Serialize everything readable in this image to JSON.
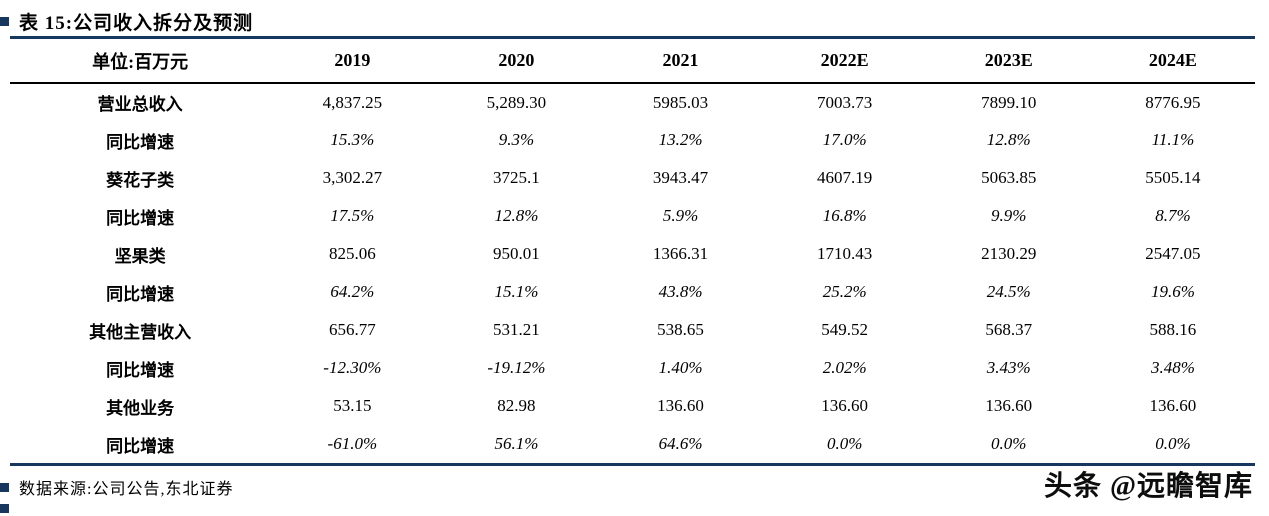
{
  "title": {
    "text": "表 15:公司收入拆分及预测"
  },
  "table": {
    "unit_header": "单位:百万元",
    "columns": [
      "2019",
      "2020",
      "2021",
      "2022E",
      "2023E",
      "2024E"
    ],
    "rows": [
      {
        "label": "营业总收入",
        "values": [
          "4,837.25",
          "5,289.30",
          "5985.03",
          "7003.73",
          "7899.10",
          "8776.95"
        ]
      },
      {
        "label": "同比增速",
        "values": [
          "15.3%",
          "9.3%",
          "13.2%",
          "17.0%",
          "12.8%",
          "11.1%"
        ]
      },
      {
        "label": "葵花子类",
        "values": [
          "3,302.27",
          "3725.1",
          "3943.47",
          "4607.19",
          "5063.85",
          "5505.14"
        ]
      },
      {
        "label": "同比增速",
        "values": [
          "17.5%",
          "12.8%",
          "5.9%",
          "16.8%",
          "9.9%",
          "8.7%"
        ]
      },
      {
        "label": "坚果类",
        "values": [
          "825.06",
          "950.01",
          "1366.31",
          "1710.43",
          "2130.29",
          "2547.05"
        ]
      },
      {
        "label": "同比增速",
        "values": [
          "64.2%",
          "15.1%",
          "43.8%",
          "25.2%",
          "24.5%",
          "19.6%"
        ]
      },
      {
        "label": "其他主营收入",
        "values": [
          "656.77",
          "531.21",
          "538.65",
          "549.52",
          "568.37",
          "588.16"
        ]
      },
      {
        "label": "同比增速",
        "values": [
          "-12.30%",
          "-19.12%",
          "1.40%",
          "2.02%",
          "3.43%",
          "3.48%"
        ]
      },
      {
        "label": "其他业务",
        "values": [
          "53.15",
          "82.98",
          "136.60",
          "136.60",
          "136.60",
          "136.60"
        ]
      },
      {
        "label": "同比增速",
        "values": [
          "-61.0%",
          "56.1%",
          "64.6%",
          "0.0%",
          "0.0%",
          "0.0%"
        ]
      }
    ]
  },
  "footer": {
    "source": "数据来源:公司公告,东北证券"
  },
  "watermark": {
    "text": "头条 @远瞻智库"
  },
  "colors": {
    "accent": "#17375E",
    "text": "#000000"
  }
}
